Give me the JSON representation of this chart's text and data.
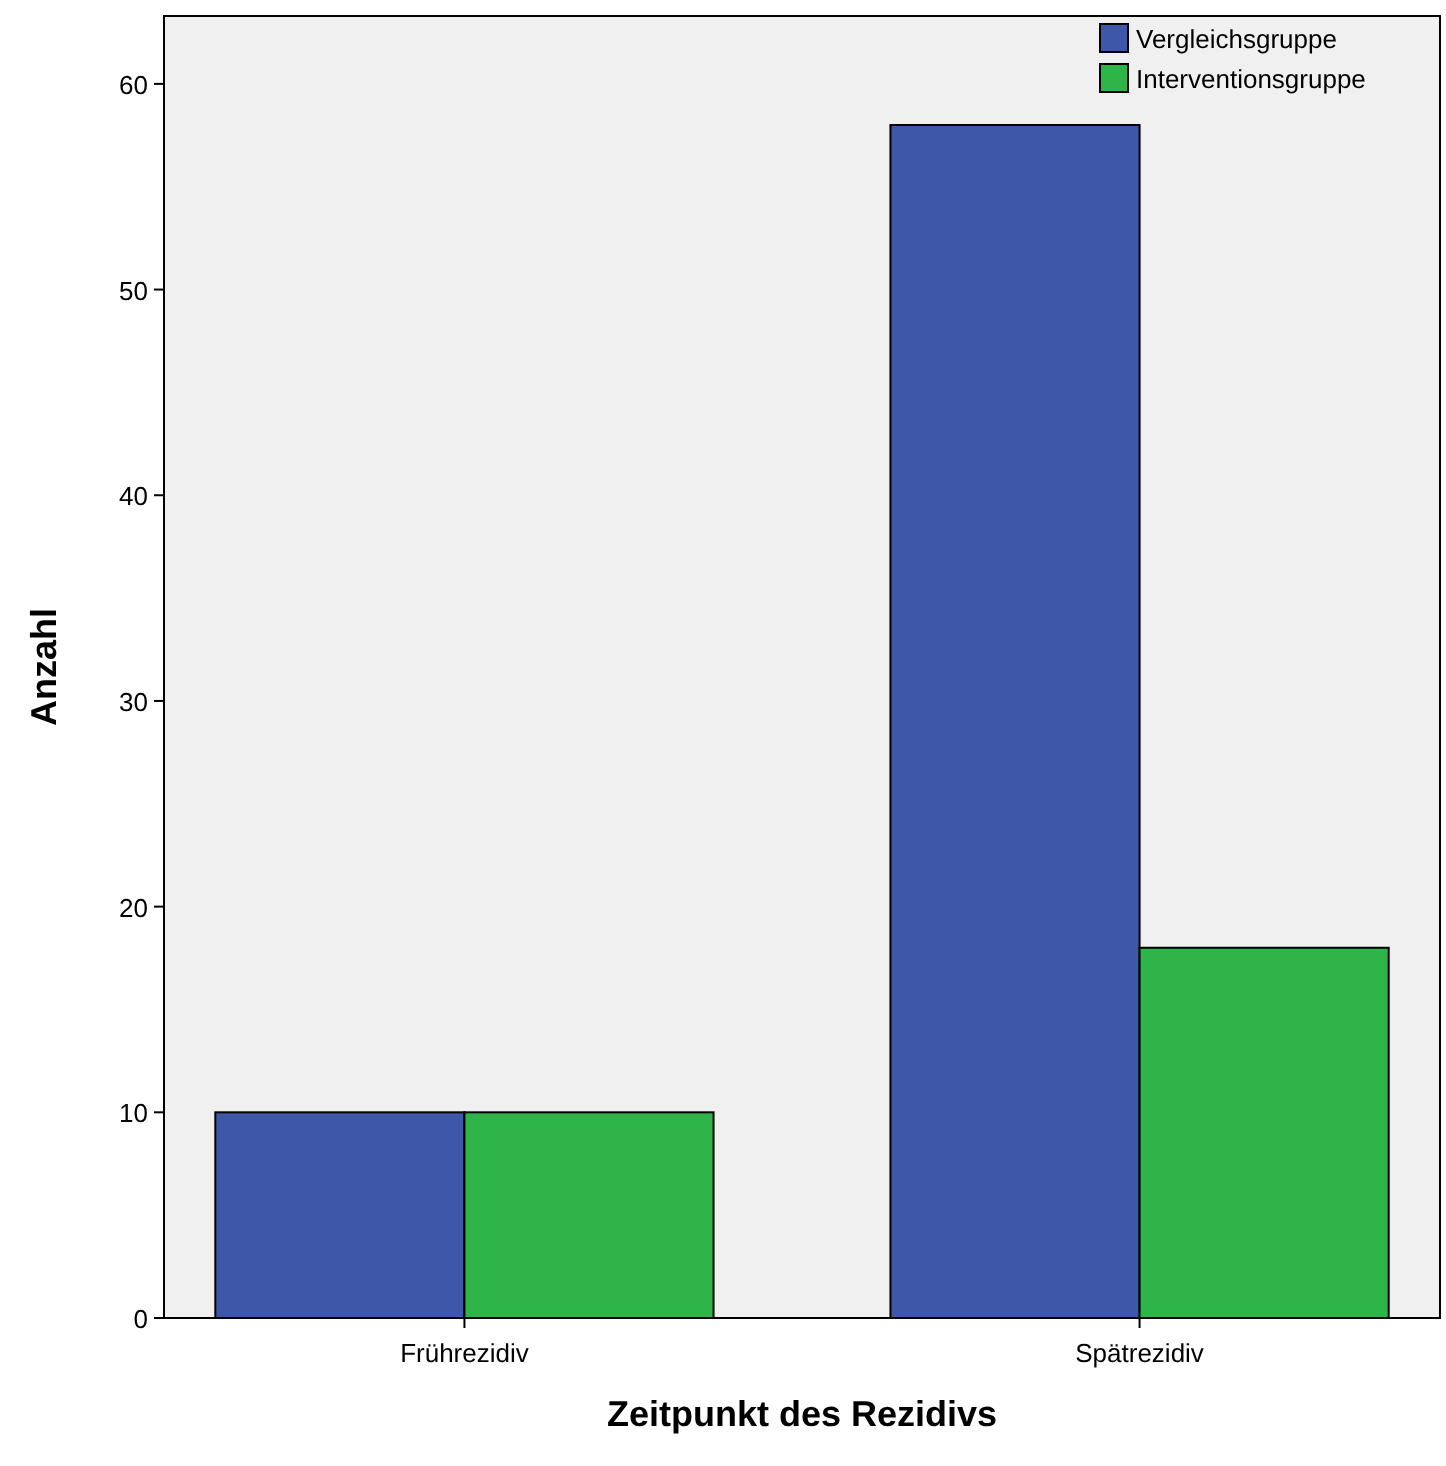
{
  "chart_data": {
    "type": "bar",
    "xlabel": "Zeitpunkt des Rezidivs",
    "ylabel": "Anzahl",
    "categories": [
      "Frührezidiv",
      "Spätrezidiv"
    ],
    "series": [
      {
        "name": "Vergleichsgruppe",
        "color": "#3e57a9",
        "values": [
          10,
          58
        ]
      },
      {
        "name": "Interventionsgruppe",
        "color": "#2fb44a",
        "values": [
          10,
          18
        ]
      }
    ],
    "ylim": [
      0,
      63.3
    ],
    "yticks": [
      0,
      10,
      20,
      30,
      40,
      50,
      60
    ],
    "grid": false,
    "legend": "top right"
  }
}
